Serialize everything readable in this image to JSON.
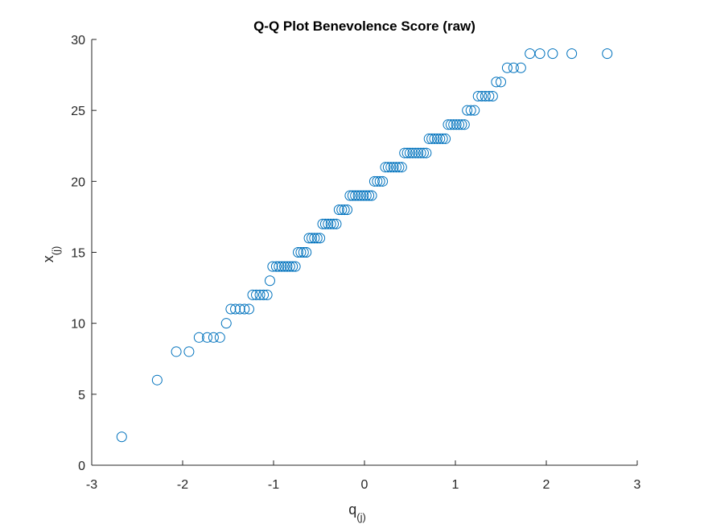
{
  "chart_data": {
    "type": "scatter",
    "title": "Q-Q Plot Benevolence Score (raw)",
    "xlabel": {
      "main": "q",
      "sub": "(j)"
    },
    "ylabel": {
      "main": "x",
      "sub": "(j)"
    },
    "xlim": [
      -3,
      3
    ],
    "ylim": [
      0,
      30
    ],
    "xticks": [
      "-3",
      "-2",
      "-1",
      "0",
      "1",
      "2",
      "3"
    ],
    "yticks": [
      "0",
      "5",
      "10",
      "15",
      "20",
      "25",
      "30"
    ],
    "grid": false,
    "marker": "open-circle",
    "marker_color": "#0072BD",
    "points": [
      [
        -2.67,
        2
      ],
      [
        -2.28,
        6
      ],
      [
        -2.07,
        8
      ],
      [
        -1.93,
        8
      ],
      [
        -1.82,
        9
      ],
      [
        -1.73,
        9
      ],
      [
        -1.66,
        9
      ],
      [
        -1.59,
        9
      ],
      [
        -1.52,
        10
      ],
      [
        -1.47,
        11
      ],
      [
        -1.42,
        11
      ],
      [
        -1.37,
        11
      ],
      [
        -1.32,
        11
      ],
      [
        -1.27,
        11
      ],
      [
        -1.23,
        12
      ],
      [
        -1.19,
        12
      ],
      [
        -1.15,
        12
      ],
      [
        -1.11,
        12
      ],
      [
        -1.07,
        12
      ],
      [
        -1.04,
        13
      ],
      [
        -1.01,
        14
      ],
      [
        -0.97,
        14
      ],
      [
        -0.94,
        14
      ],
      [
        -0.91,
        14
      ],
      [
        -0.88,
        14
      ],
      [
        -0.85,
        14
      ],
      [
        -0.82,
        14
      ],
      [
        -0.79,
        14
      ],
      [
        -0.76,
        14
      ],
      [
        -0.73,
        15
      ],
      [
        -0.7,
        15
      ],
      [
        -0.67,
        15
      ],
      [
        -0.64,
        15
      ],
      [
        -0.61,
        16
      ],
      [
        -0.58,
        16
      ],
      [
        -0.55,
        16
      ],
      [
        -0.52,
        16
      ],
      [
        -0.49,
        16
      ],
      [
        -0.46,
        17
      ],
      [
        -0.43,
        17
      ],
      [
        -0.4,
        17
      ],
      [
        -0.37,
        17
      ],
      [
        -0.34,
        17
      ],
      [
        -0.31,
        17
      ],
      [
        -0.28,
        18
      ],
      [
        -0.25,
        18
      ],
      [
        -0.22,
        18
      ],
      [
        -0.19,
        18
      ],
      [
        -0.16,
        19
      ],
      [
        -0.13,
        19
      ],
      [
        -0.1,
        19
      ],
      [
        -0.07,
        19
      ],
      [
        -0.04,
        19
      ],
      [
        -0.01,
        19
      ],
      [
        0.02,
        19
      ],
      [
        0.05,
        19
      ],
      [
        0.08,
        19
      ],
      [
        0.11,
        20
      ],
      [
        0.14,
        20
      ],
      [
        0.17,
        20
      ],
      [
        0.2,
        20
      ],
      [
        0.23,
        21
      ],
      [
        0.26,
        21
      ],
      [
        0.29,
        21
      ],
      [
        0.32,
        21
      ],
      [
        0.35,
        21
      ],
      [
        0.38,
        21
      ],
      [
        0.41,
        21
      ],
      [
        0.44,
        22
      ],
      [
        0.47,
        22
      ],
      [
        0.5,
        22
      ],
      [
        0.53,
        22
      ],
      [
        0.56,
        22
      ],
      [
        0.59,
        22
      ],
      [
        0.62,
        22
      ],
      [
        0.65,
        22
      ],
      [
        0.68,
        22
      ],
      [
        0.71,
        23
      ],
      [
        0.74,
        23
      ],
      [
        0.77,
        23
      ],
      [
        0.8,
        23
      ],
      [
        0.83,
        23
      ],
      [
        0.86,
        23
      ],
      [
        0.89,
        23
      ],
      [
        0.92,
        24
      ],
      [
        0.95,
        24
      ],
      [
        0.98,
        24
      ],
      [
        1.01,
        24
      ],
      [
        1.04,
        24
      ],
      [
        1.07,
        24
      ],
      [
        1.1,
        24
      ],
      [
        1.13,
        25
      ],
      [
        1.17,
        25
      ],
      [
        1.21,
        25
      ],
      [
        1.25,
        26
      ],
      [
        1.29,
        26
      ],
      [
        1.33,
        26
      ],
      [
        1.37,
        26
      ],
      [
        1.41,
        26
      ],
      [
        1.45,
        27
      ],
      [
        1.5,
        27
      ],
      [
        1.57,
        28
      ],
      [
        1.64,
        28
      ],
      [
        1.72,
        28
      ],
      [
        1.82,
        29
      ],
      [
        1.93,
        29
      ],
      [
        2.07,
        29
      ],
      [
        2.28,
        29
      ],
      [
        2.67,
        29
      ]
    ]
  }
}
